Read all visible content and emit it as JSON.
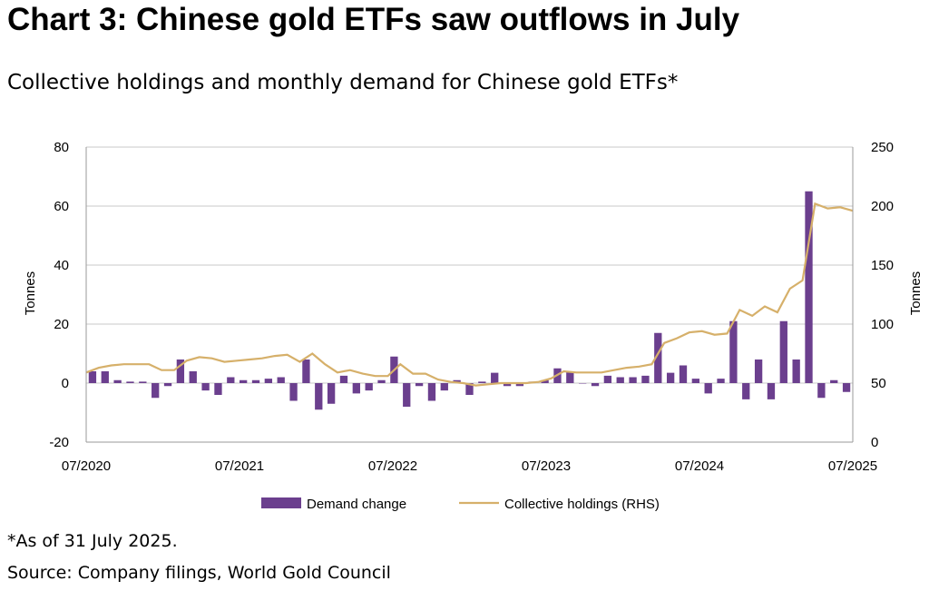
{
  "title": "Chart 3: Chinese gold ETFs saw outflows in July",
  "subtitle": "Collective holdings and monthly demand for Chinese gold ETFs*",
  "footnote": "*As of 31 July 2025.",
  "source": "Source: Company filings, World Gold Council",
  "colors": {
    "bar": "#6b3f8e",
    "line": "#d6b06a",
    "grid": "#c8c8c8",
    "axis": "#9a9a9a"
  },
  "chart_data": {
    "type": "bar",
    "xlabels": [
      "07/2020",
      "07/2021",
      "07/2022",
      "07/2023",
      "07/2024",
      "07/2025"
    ],
    "ylabel": "Tonnes",
    "y2label": "Tonnes",
    "ylim": [
      -20,
      80
    ],
    "yticks": [
      "80",
      "60",
      "40",
      "20",
      "0",
      "-20"
    ],
    "y2lim": [
      0,
      250
    ],
    "y2ticks": [
      "250",
      "200",
      "150",
      "100",
      "50",
      "0"
    ],
    "grid": true,
    "legend_position": "bottom",
    "series": [
      {
        "name": "Demand change",
        "type": "bar",
        "axis": "left",
        "values": [
          4,
          4,
          1,
          0.5,
          0.5,
          -5,
          -1,
          8,
          4,
          -2.5,
          -4,
          2,
          1,
          1,
          1.5,
          2,
          -6,
          8,
          -9,
          -7,
          2.5,
          -3.5,
          -2.5,
          1,
          9,
          -8,
          -1,
          -6,
          -2.5,
          1,
          -4,
          0.5,
          3.5,
          -1,
          -1,
          0.5,
          1,
          5,
          4,
          0,
          -1,
          2.5,
          2,
          2,
          2.5,
          17,
          3.5,
          6,
          1.5,
          -3.5,
          1.5,
          21,
          -5.5,
          8,
          -5.5,
          21,
          8,
          65,
          -5,
          1,
          -3
        ]
      },
      {
        "name": "Collective holdings (RHS)",
        "type": "line",
        "axis": "right",
        "values": [
          59,
          63,
          65,
          66,
          66,
          66,
          61,
          61,
          69,
          72,
          71,
          68,
          69,
          70,
          71,
          73,
          74,
          68,
          75,
          66,
          59,
          61,
          58,
          56,
          56,
          66,
          58,
          58,
          53,
          51,
          50,
          48,
          49,
          50,
          50,
          50,
          51,
          54,
          60,
          59,
          59,
          59,
          61,
          63,
          64,
          66,
          84,
          88,
          93,
          94,
          91,
          92,
          112,
          107,
          115,
          110,
          130,
          137,
          202,
          198,
          199,
          196
        ]
      }
    ]
  }
}
